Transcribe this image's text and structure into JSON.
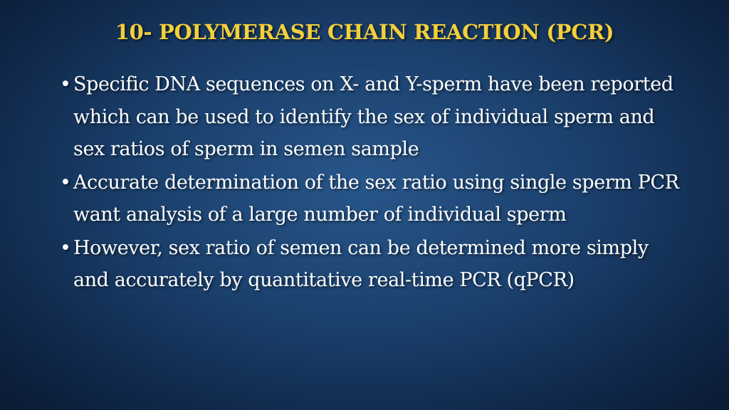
{
  "title": "10- POLYMERASE CHAIN REACTION (PCR)",
  "bullets": [
    "Specific DNA sequences on X- and Y-sperm have been reported which can be used to identify the sex of individual sperm and sex ratios of sperm in semen sample",
    "Accurate determination of the sex ratio using single sperm PCR want analysis of a large number of individual sperm",
    "However, sex ratio of semen can be determined more simply and accurately by quantitative real-time PCR (qPCR)"
  ]
}
